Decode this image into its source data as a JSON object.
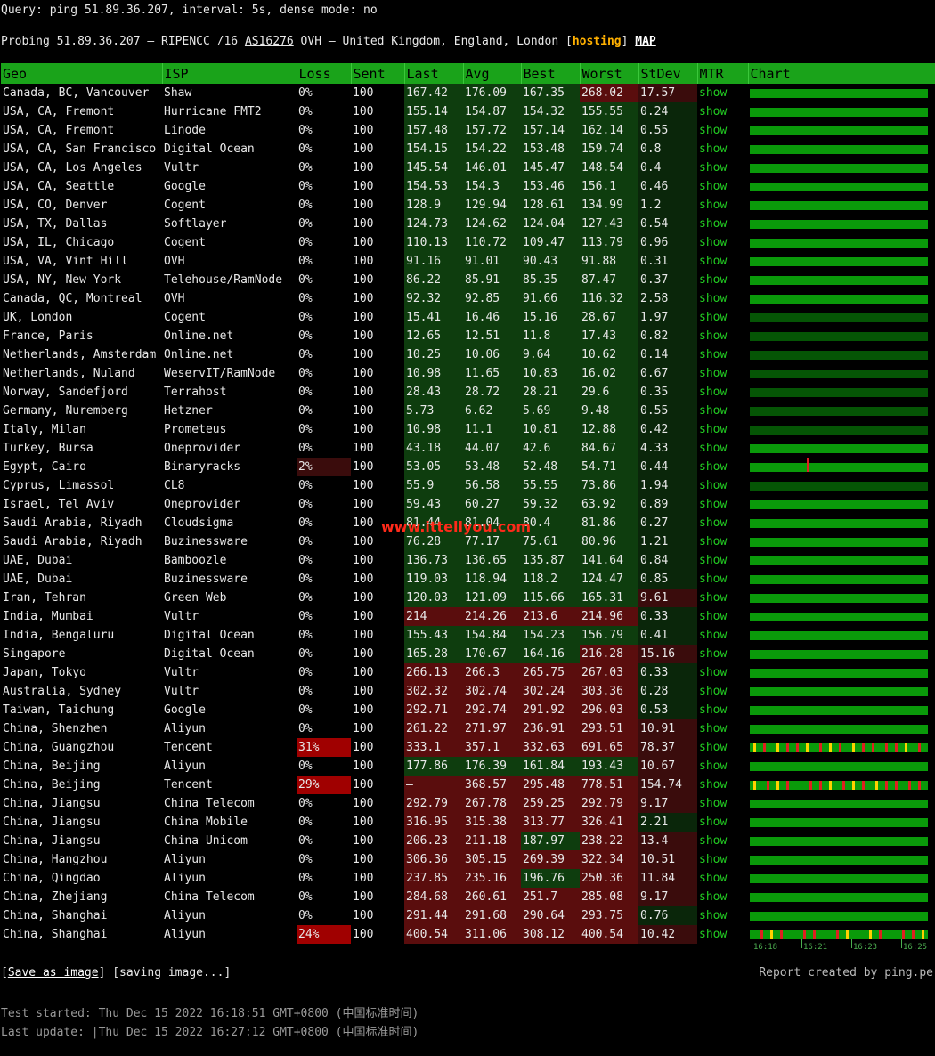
{
  "query": "Query: ping 51.89.36.207, interval: 5s, dense mode: no",
  "probe": {
    "prefix": "Probing 51.89.36.207 — RIPENCC /16 ",
    "asn": "AS16276",
    "middle": " OVH — United Kingdom, England, London [",
    "hosting": "hosting",
    "suffix": "] ",
    "map": "MAP"
  },
  "headers": [
    "Geo",
    "ISP",
    "Loss",
    "Sent",
    "Last",
    "Avg",
    "Best",
    "Worst",
    "StDev",
    "MTR",
    "Chart"
  ],
  "rows": [
    {
      "geo": "Canada, BC, Vancouver",
      "isp": "Shaw",
      "loss": "0%",
      "sent": "100",
      "last": "167.42",
      "avg": "176.09",
      "best": "167.35",
      "worst": "268.02",
      "stdev": "17.57"
    },
    {
      "geo": "USA, CA, Fremont",
      "isp": "Hurricane FMT2",
      "loss": "0%",
      "sent": "100",
      "last": "155.14",
      "avg": "154.87",
      "best": "154.32",
      "worst": "155.55",
      "stdev": "0.24"
    },
    {
      "geo": "USA, CA, Fremont",
      "isp": "Linode",
      "loss": "0%",
      "sent": "100",
      "last": "157.48",
      "avg": "157.72",
      "best": "157.14",
      "worst": "162.14",
      "stdev": "0.55"
    },
    {
      "geo": "USA, CA, San Francisco",
      "isp": "Digital Ocean",
      "loss": "0%",
      "sent": "100",
      "last": "154.15",
      "avg": "154.22",
      "best": "153.48",
      "worst": "159.74",
      "stdev": "0.8"
    },
    {
      "geo": "USA, CA, Los Angeles",
      "isp": "Vultr",
      "loss": "0%",
      "sent": "100",
      "last": "145.54",
      "avg": "146.01",
      "best": "145.47",
      "worst": "148.54",
      "stdev": "0.4"
    },
    {
      "geo": "USA, CA, Seattle",
      "isp": "Google",
      "loss": "0%",
      "sent": "100",
      "last": "154.53",
      "avg": "154.3",
      "best": "153.46",
      "worst": "156.1",
      "stdev": "0.46"
    },
    {
      "geo": "USA, CO, Denver",
      "isp": "Cogent",
      "loss": "0%",
      "sent": "100",
      "last": "128.9",
      "avg": "129.94",
      "best": "128.61",
      "worst": "134.99",
      "stdev": "1.2"
    },
    {
      "geo": "USA, TX, Dallas",
      "isp": "Softlayer",
      "loss": "0%",
      "sent": "100",
      "last": "124.73",
      "avg": "124.62",
      "best": "124.04",
      "worst": "127.43",
      "stdev": "0.54"
    },
    {
      "geo": "USA, IL, Chicago",
      "isp": "Cogent",
      "loss": "0%",
      "sent": "100",
      "last": "110.13",
      "avg": "110.72",
      "best": "109.47",
      "worst": "113.79",
      "stdev": "0.96"
    },
    {
      "geo": "USA, VA, Vint Hill",
      "isp": "OVH",
      "loss": "0%",
      "sent": "100",
      "last": "91.16",
      "avg": "91.01",
      "best": "90.43",
      "worst": "91.88",
      "stdev": "0.31"
    },
    {
      "geo": "USA, NY, New York",
      "isp": "Telehouse/RamNode",
      "loss": "0%",
      "sent": "100",
      "last": "86.22",
      "avg": "85.91",
      "best": "85.35",
      "worst": "87.47",
      "stdev": "0.37"
    },
    {
      "geo": "Canada, QC, Montreal",
      "isp": "OVH",
      "loss": "0%",
      "sent": "100",
      "last": "92.32",
      "avg": "92.85",
      "best": "91.66",
      "worst": "116.32",
      "stdev": "2.58"
    },
    {
      "geo": "UK, London",
      "isp": "Cogent",
      "loss": "0%",
      "sent": "100",
      "last": "15.41",
      "avg": "16.46",
      "best": "15.16",
      "worst": "28.67",
      "stdev": "1.97"
    },
    {
      "geo": "France, Paris",
      "isp": "Online.net",
      "loss": "0%",
      "sent": "100",
      "last": "12.65",
      "avg": "12.51",
      "best": "11.8",
      "worst": "17.43",
      "stdev": "0.82"
    },
    {
      "geo": "Netherlands, Amsterdam",
      "isp": "Online.net",
      "loss": "0%",
      "sent": "100",
      "last": "10.25",
      "avg": "10.06",
      "best": "9.64",
      "worst": "10.62",
      "stdev": "0.14"
    },
    {
      "geo": "Netherlands, Nuland",
      "isp": "WeservIT/RamNode",
      "loss": "0%",
      "sent": "100",
      "last": "10.98",
      "avg": "11.65",
      "best": "10.83",
      "worst": "16.02",
      "stdev": "0.67"
    },
    {
      "geo": "Norway, Sandefjord",
      "isp": "Terrahost",
      "loss": "0%",
      "sent": "100",
      "last": "28.43",
      "avg": "28.72",
      "best": "28.21",
      "worst": "29.6",
      "stdev": "0.35"
    },
    {
      "geo": "Germany, Nuremberg",
      "isp": "Hetzner",
      "loss": "0%",
      "sent": "100",
      "last": "5.73",
      "avg": "6.62",
      "best": "5.69",
      "worst": "9.48",
      "stdev": "0.55"
    },
    {
      "geo": "Italy, Milan",
      "isp": "Prometeus",
      "loss": "0%",
      "sent": "100",
      "last": "10.98",
      "avg": "11.1",
      "best": "10.81",
      "worst": "12.88",
      "stdev": "0.42"
    },
    {
      "geo": "Turkey, Bursa",
      "isp": "Oneprovider",
      "loss": "0%",
      "sent": "100",
      "last": "43.18",
      "avg": "44.07",
      "best": "42.6",
      "worst": "84.67",
      "stdev": "4.33"
    },
    {
      "geo": "Egypt, Cairo",
      "isp": "Binaryracks",
      "loss": "2%",
      "sent": "100",
      "last": "53.05",
      "avg": "53.48",
      "best": "52.48",
      "worst": "54.71",
      "stdev": "0.44"
    },
    {
      "geo": "Cyprus, Limassol",
      "isp": "CL8",
      "loss": "0%",
      "sent": "100",
      "last": "55.9",
      "avg": "56.58",
      "best": "55.55",
      "worst": "73.86",
      "stdev": "1.94"
    },
    {
      "geo": "Israel, Tel Aviv",
      "isp": "Oneprovider",
      "loss": "0%",
      "sent": "100",
      "last": "59.43",
      "avg": "60.27",
      "best": "59.32",
      "worst": "63.92",
      "stdev": "0.89"
    },
    {
      "geo": "Saudi Arabia, Riyadh",
      "isp": "Cloudsigma",
      "loss": "0%",
      "sent": "100",
      "last": "81.44",
      "avg": "81.04",
      "best": "80.4",
      "worst": "81.86",
      "stdev": "0.27"
    },
    {
      "geo": "Saudi Arabia, Riyadh",
      "isp": "Buzinessware",
      "loss": "0%",
      "sent": "100",
      "last": "76.28",
      "avg": "77.17",
      "best": "75.61",
      "worst": "80.96",
      "stdev": "1.21"
    },
    {
      "geo": "UAE, Dubai",
      "isp": "Bamboozle",
      "loss": "0%",
      "sent": "100",
      "last": "136.73",
      "avg": "136.65",
      "best": "135.87",
      "worst": "141.64",
      "stdev": "0.84"
    },
    {
      "geo": "UAE, Dubai",
      "isp": "Buzinessware",
      "loss": "0%",
      "sent": "100",
      "last": "119.03",
      "avg": "118.94",
      "best": "118.2",
      "worst": "124.47",
      "stdev": "0.85"
    },
    {
      "geo": "Iran, Tehran",
      "isp": "Green Web",
      "loss": "0%",
      "sent": "100",
      "last": "120.03",
      "avg": "121.09",
      "best": "115.66",
      "worst": "165.31",
      "stdev": "9.61"
    },
    {
      "geo": "India, Mumbai",
      "isp": "Vultr",
      "loss": "0%",
      "sent": "100",
      "last": "214",
      "avg": "214.26",
      "best": "213.6",
      "worst": "214.96",
      "stdev": "0.33"
    },
    {
      "geo": "India, Bengaluru",
      "isp": "Digital Ocean",
      "loss": "0%",
      "sent": "100",
      "last": "155.43",
      "avg": "154.84",
      "best": "154.23",
      "worst": "156.79",
      "stdev": "0.41"
    },
    {
      "geo": "Singapore",
      "isp": "Digital Ocean",
      "loss": "0%",
      "sent": "100",
      "last": "165.28",
      "avg": "170.67",
      "best": "164.16",
      "worst": "216.28",
      "stdev": "15.16"
    },
    {
      "geo": "Japan, Tokyo",
      "isp": "Vultr",
      "loss": "0%",
      "sent": "100",
      "last": "266.13",
      "avg": "266.3",
      "best": "265.75",
      "worst": "267.03",
      "stdev": "0.33"
    },
    {
      "geo": "Australia, Sydney",
      "isp": "Vultr",
      "loss": "0%",
      "sent": "100",
      "last": "302.32",
      "avg": "302.74",
      "best": "302.24",
      "worst": "303.36",
      "stdev": "0.28"
    },
    {
      "geo": "Taiwan, Taichung",
      "isp": "Google",
      "loss": "0%",
      "sent": "100",
      "last": "292.71",
      "avg": "292.74",
      "best": "291.92",
      "worst": "296.03",
      "stdev": "0.53"
    },
    {
      "geo": "China, Shenzhen",
      "isp": "Aliyun",
      "loss": "0%",
      "sent": "100",
      "last": "261.22",
      "avg": "271.97",
      "best": "236.91",
      "worst": "293.51",
      "stdev": "10.91"
    },
    {
      "geo": "China, Guangzhou",
      "isp": "Tencent",
      "loss": "31%",
      "sent": "100",
      "last": "333.1",
      "avg": "357.1",
      "best": "332.63",
      "worst": "691.65",
      "stdev": "78.37"
    },
    {
      "geo": "China, Beijing",
      "isp": "Aliyun",
      "loss": "0%",
      "sent": "100",
      "last": "177.86",
      "avg": "176.39",
      "best": "161.84",
      "worst": "193.43",
      "stdev": "10.67"
    },
    {
      "geo": "China, Beijing",
      "isp": "Tencent",
      "loss": "29%",
      "sent": "100",
      "last": "–",
      "avg": "368.57",
      "best": "295.48",
      "worst": "778.51",
      "stdev": "154.74"
    },
    {
      "geo": "China, Jiangsu",
      "isp": "China Telecom",
      "loss": "0%",
      "sent": "100",
      "last": "292.79",
      "avg": "267.78",
      "best": "259.25",
      "worst": "292.79",
      "stdev": "9.17"
    },
    {
      "geo": "China, Jiangsu",
      "isp": "China Mobile",
      "loss": "0%",
      "sent": "100",
      "last": "316.95",
      "avg": "315.38",
      "best": "313.77",
      "worst": "326.41",
      "stdev": "2.21"
    },
    {
      "geo": "China, Jiangsu",
      "isp": "China Unicom",
      "loss": "0%",
      "sent": "100",
      "last": "206.23",
      "avg": "211.18",
      "best": "187.97",
      "worst": "238.22",
      "stdev": "13.4"
    },
    {
      "geo": "China, Hangzhou",
      "isp": "Aliyun",
      "loss": "0%",
      "sent": "100",
      "last": "306.36",
      "avg": "305.15",
      "best": "269.39",
      "worst": "322.34",
      "stdev": "10.51"
    },
    {
      "geo": "China, Qingdao",
      "isp": "Aliyun",
      "loss": "0%",
      "sent": "100",
      "last": "237.85",
      "avg": "235.16",
      "best": "196.76",
      "worst": "250.36",
      "stdev": "11.84"
    },
    {
      "geo": "China, Zhejiang",
      "isp": "China Telecom",
      "loss": "0%",
      "sent": "100",
      "last": "284.68",
      "avg": "260.61",
      "best": "251.7",
      "worst": "285.08",
      "stdev": "9.17"
    },
    {
      "geo": "China, Shanghai",
      "isp": "Aliyun",
      "loss": "0%",
      "sent": "100",
      "last": "291.44",
      "avg": "291.68",
      "best": "290.64",
      "worst": "293.75",
      "stdev": "0.76"
    },
    {
      "geo": "China, Shanghai",
      "isp": "Aliyun",
      "loss": "24%",
      "sent": "100",
      "last": "400.54",
      "avg": "311.06",
      "best": "308.12",
      "worst": "400.54",
      "stdev": "10.42"
    }
  ],
  "mtr_label": "show",
  "chart_axis": [
    "16:18",
    "16:21",
    "16:23",
    "16:25"
  ],
  "save_link": "Save as image",
  "saving": " [saving image...]",
  "credit": "Report created by ping.pe",
  "test_started": "Test started: Thu Dec 15 2022 16:18:51 GMT+0800 (中国标准时间)",
  "last_update": "Last update: |Thu Dec 15 2022 16:27:12 GMT+0800 (中国标准时间)",
  "watermark": "www.ittellyou.com",
  "colors": {
    "header": "#1aa31a",
    "good": "#0e3d0e",
    "bad": "#5a0d0d",
    "loss": "#a00000",
    "chart_ok": "#0a9a0a",
    "chart_loss": "#e02020",
    "chart_warn": "#ffd000"
  }
}
